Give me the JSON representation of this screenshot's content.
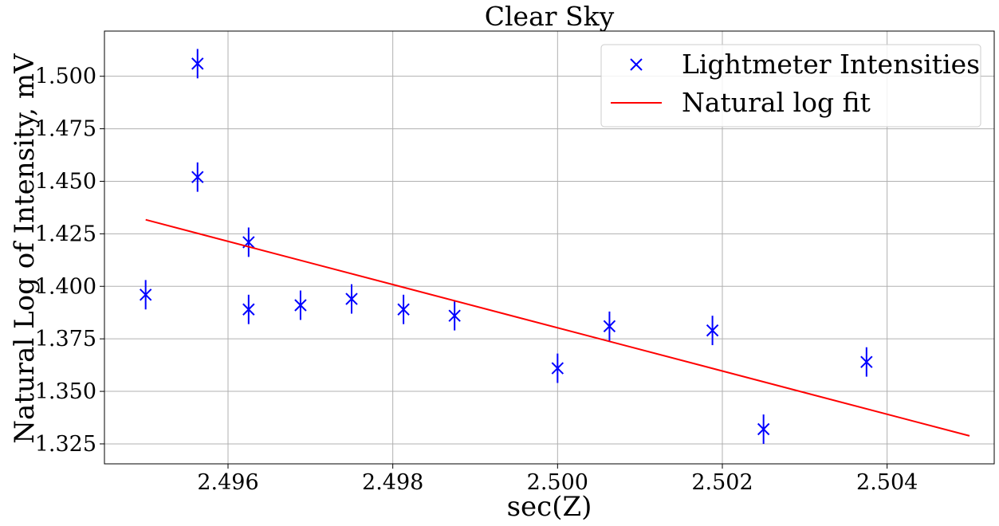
{
  "chart_data": {
    "type": "scatter",
    "title": "Clear Sky",
    "xlabel": "sec(Z)",
    "ylabel": "Natural Log of Intensity, mV",
    "xlim": [
      2.4945,
      2.5053
    ],
    "ylim": [
      1.3155,
      1.5215
    ],
    "xticks": [
      2.496,
      2.498,
      2.5,
      2.502,
      2.504
    ],
    "xtick_labels": [
      "2.496",
      "2.498",
      "2.500",
      "2.502",
      "2.504"
    ],
    "yticks": [
      1.325,
      1.35,
      1.375,
      1.4,
      1.425,
      1.45,
      1.475,
      1.5
    ],
    "ytick_labels": [
      "1.325",
      "1.350",
      "1.375",
      "1.400",
      "1.425",
      "1.450",
      "1.475",
      "1.500"
    ],
    "grid": true,
    "legend_position": "top-right",
    "series": [
      {
        "name": "Lightmeter Intensities",
        "kind": "points-with-errorbars",
        "marker": "x",
        "color": "#0000ff",
        "x": [
          2.495,
          2.49563,
          2.49563,
          2.49625,
          2.49625,
          2.49688,
          2.4975,
          2.49813,
          2.49875,
          2.5,
          2.50063,
          2.50188,
          2.5025,
          2.50375
        ],
        "y": [
          1.396,
          1.506,
          1.452,
          1.421,
          1.389,
          1.391,
          1.394,
          1.389,
          1.386,
          1.361,
          1.381,
          1.379,
          1.332,
          1.364
        ],
        "yerr": [
          0.007,
          0.007,
          0.007,
          0.007,
          0.007,
          0.007,
          0.007,
          0.007,
          0.007,
          0.007,
          0.007,
          0.007,
          0.007,
          0.007
        ]
      },
      {
        "name": "Natural log fit",
        "kind": "line",
        "color": "#ff0000",
        "x": [
          2.495,
          2.505
        ],
        "y": [
          1.4317,
          1.3288
        ]
      }
    ]
  }
}
